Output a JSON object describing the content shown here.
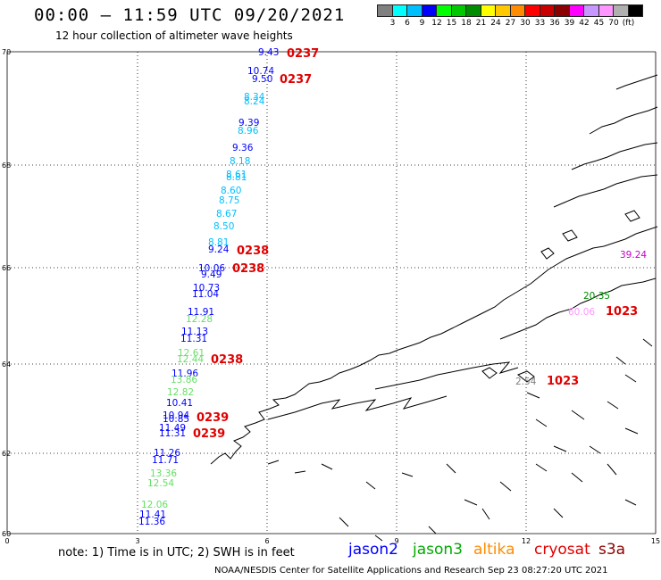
{
  "header": {
    "title": "00:00 – 11:59 UTC 09/20/2021",
    "subtitle": "12 hour collection of altimeter wave heights"
  },
  "color_scale": {
    "colors": [
      "#808080",
      "#00ffff",
      "#00bfff",
      "#0000ff",
      "#00ff00",
      "#00c800",
      "#008c00",
      "#ffff00",
      "#ffc800",
      "#ff8c00",
      "#ff0000",
      "#c80000",
      "#8b0000",
      "#ff00ff",
      "#c896ff",
      "#ff96ff",
      "#b0b0b0",
      "#000000"
    ],
    "labels": [
      "3",
      "6",
      "9",
      "12",
      "15",
      "18",
      "21",
      "24",
      "27",
      "30",
      "33",
      "36",
      "39",
      "42",
      "45",
      "70",
      "(ft)"
    ]
  },
  "axes": {
    "x_ticks": [
      "0",
      "3",
      "6",
      "9",
      "12",
      "15"
    ],
    "y_ticks": [
      "70",
      "68",
      "66",
      "64",
      "62",
      "60"
    ]
  },
  "observations": [
    {
      "v": "9.43",
      "c": "#0000ff"
    },
    {
      "v": "10.74",
      "c": "#0000ff"
    },
    {
      "v": "9.50",
      "c": "#0000ff"
    },
    {
      "v": "8.34",
      "c": "#00bfff"
    },
    {
      "v": "8.24",
      "c": "#00bfff"
    },
    {
      "v": "9.39",
      "c": "#0000ff"
    },
    {
      "v": "8.96",
      "c": "#00bfff"
    },
    {
      "v": "9.36",
      "c": "#0000ff"
    },
    {
      "v": "8.18",
      "c": "#00bfff"
    },
    {
      "v": "8.61",
      "c": "#00bfff"
    },
    {
      "v": "8.81",
      "c": "#00bfff"
    },
    {
      "v": "8.60",
      "c": "#00bfff"
    },
    {
      "v": "8.75",
      "c": "#00bfff"
    },
    {
      "v": "8.67",
      "c": "#00bfff"
    },
    {
      "v": "8.50",
      "c": "#00bfff"
    },
    {
      "v": "8.81",
      "c": "#00bfff"
    },
    {
      "v": "9.24",
      "c": "#0000ff"
    },
    {
      "v": "10.06",
      "c": "#0000ff"
    },
    {
      "v": "9.49",
      "c": "#0000ff"
    },
    {
      "v": "10.73",
      "c": "#0000ff"
    },
    {
      "v": "11.04",
      "c": "#0000ff"
    },
    {
      "v": "11.91",
      "c": "#0000ff"
    },
    {
      "v": "12.28",
      "c": "#66e066"
    },
    {
      "v": "11.13",
      "c": "#0000ff"
    },
    {
      "v": "11.31",
      "c": "#0000ff"
    },
    {
      "v": "12.61",
      "c": "#66e066"
    },
    {
      "v": "12.44",
      "c": "#66e066"
    },
    {
      "v": "11.96",
      "c": "#0000ff"
    },
    {
      "v": "13.86",
      "c": "#66e066"
    },
    {
      "v": "12.82",
      "c": "#66e066"
    },
    {
      "v": "10.41",
      "c": "#0000ff"
    },
    {
      "v": "10.94",
      "c": "#0000ff"
    },
    {
      "v": "10.85",
      "c": "#0000ff"
    },
    {
      "v": "11.49",
      "c": "#0000ff"
    },
    {
      "v": "11.31",
      "c": "#0000ff"
    },
    {
      "v": "11.26",
      "c": "#0000ff"
    },
    {
      "v": "11.71",
      "c": "#0000ff"
    },
    {
      "v": "13.36",
      "c": "#66e066"
    },
    {
      "v": "12.54",
      "c": "#66e066"
    },
    {
      "v": "12.06",
      "c": "#66e066"
    },
    {
      "v": "11.41",
      "c": "#0000ff"
    },
    {
      "v": "11.36",
      "c": "#0000ff"
    },
    {
      "v": "39.24",
      "c": "#c800c8"
    },
    {
      "v": "20.35",
      "c": "#008c00"
    },
    {
      "v": "60.06",
      "c": "#ff96ff"
    },
    {
      "v": "2.54",
      "c": "#808080"
    }
  ],
  "passes": [
    {
      "t": "0237",
      "c": "#e00000"
    },
    {
      "t": "0237",
      "c": "#e00000"
    },
    {
      "t": "0238",
      "c": "#e00000"
    },
    {
      "t": "0238",
      "c": "#e00000"
    },
    {
      "t": "0238",
      "c": "#e00000"
    },
    {
      "t": "0239",
      "c": "#e00000"
    },
    {
      "t": "0239",
      "c": "#e00000"
    },
    {
      "t": "1023",
      "c": "#8b0000"
    },
    {
      "t": "1023",
      "c": "#8b0000"
    }
  ],
  "footer": {
    "note": "note:  1) Time is in UTC;  2) SWH is in feet",
    "legend": [
      {
        "label": "jason2",
        "color": "#0000ff"
      },
      {
        "label": "jason3",
        "color": "#00aa00"
      },
      {
        "label": "altika",
        "color": "#ff8c00"
      },
      {
        "label": "cryosat",
        "color": "#e00000"
      },
      {
        "label": "s3a",
        "color": "#8b0000"
      }
    ],
    "credit": "NOAA/NESDIS Center for Satellite Applications and Research     Sep 23 08:27:20 UTC 2021"
  }
}
